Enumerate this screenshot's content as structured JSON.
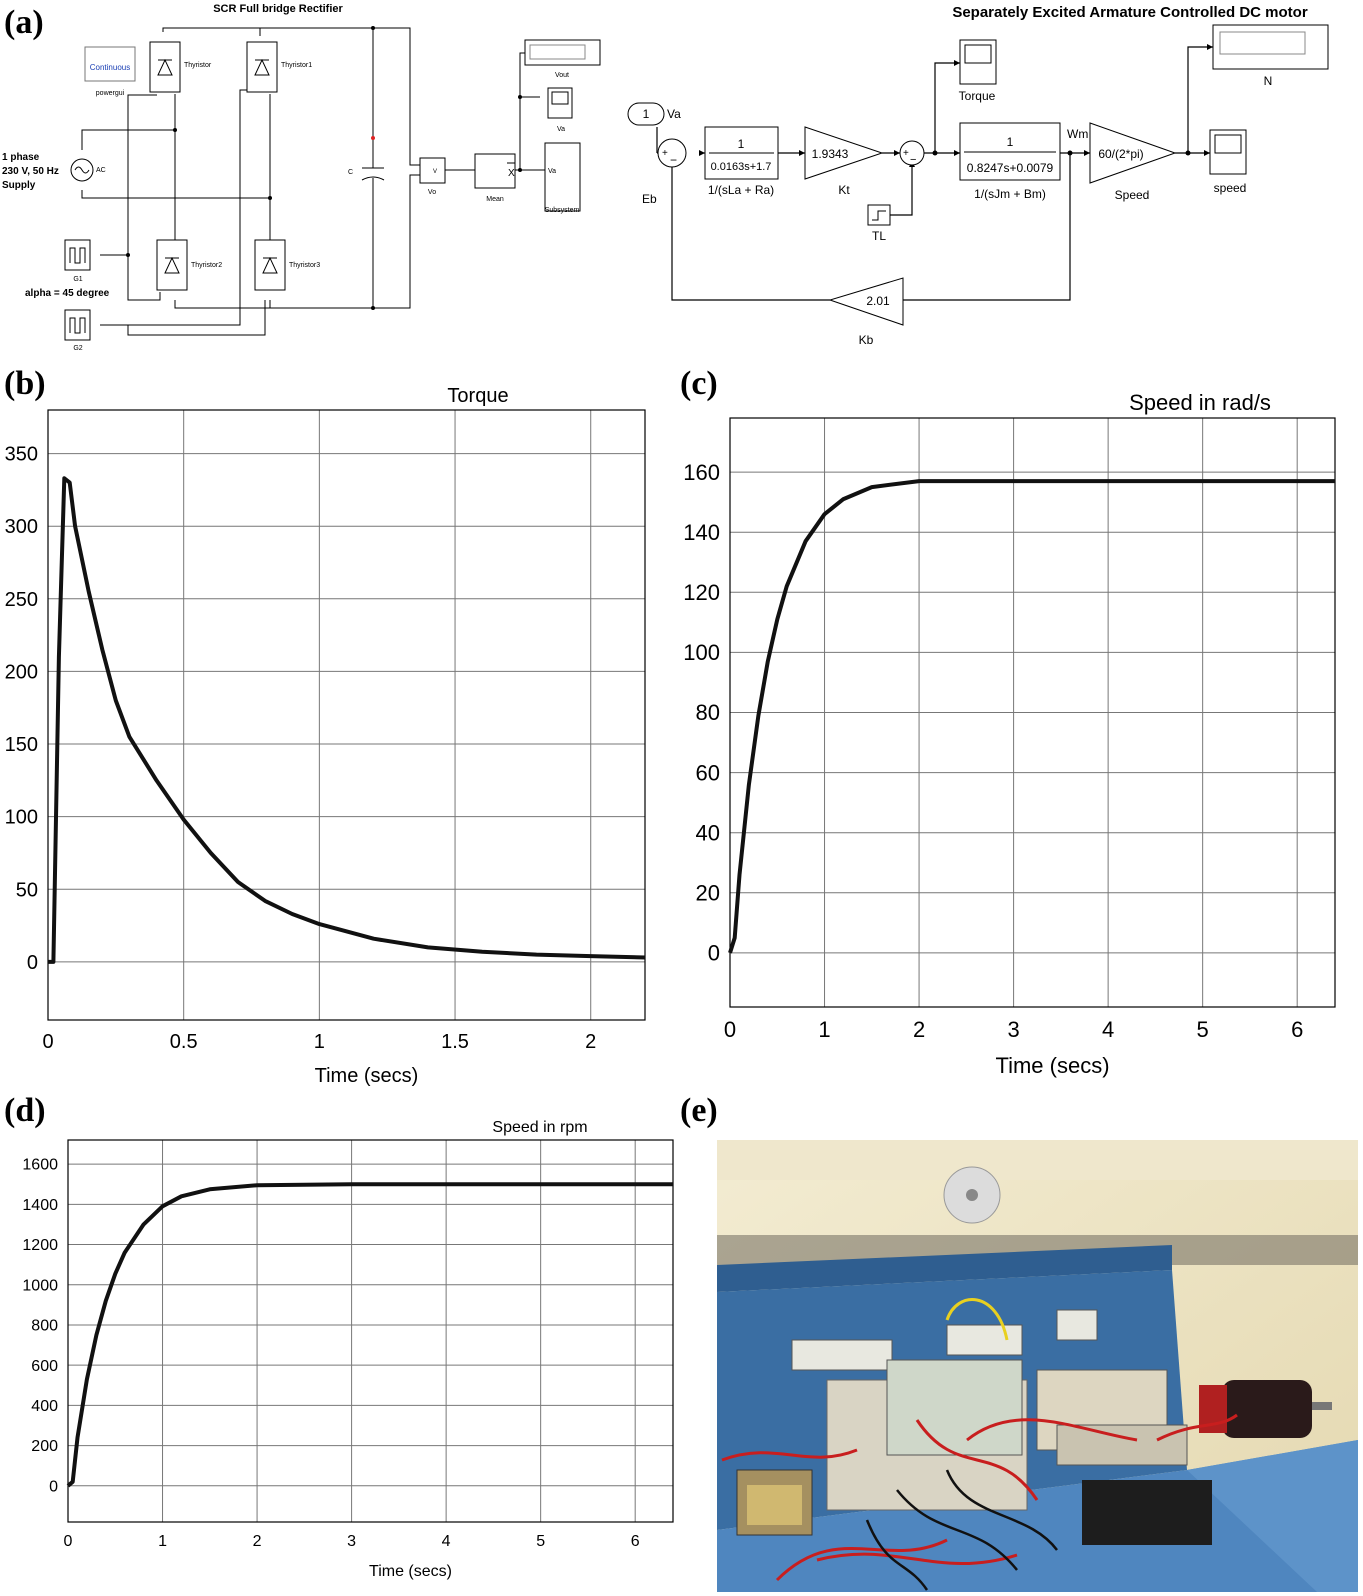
{
  "panels": {
    "a": "(a)",
    "b": "(b)",
    "c": "(c)",
    "d": "(d)",
    "e": "(e)"
  },
  "rectifier": {
    "title": "SCR Full bridge Rectifier",
    "powergui": {
      "label": "Continuous",
      "name": "powergui"
    },
    "supply": [
      "1 phase",
      "230 V, 50 Hz",
      "Supply"
    ],
    "ac": "AC",
    "thyristors": [
      "Thyristor",
      "Thyristor1",
      "Thyristor2",
      "Thyristor3"
    ],
    "cap": "C",
    "vo": "Vo",
    "vo_port": "V",
    "mean": "Mean",
    "mean_symbol": "X",
    "vout": "Vout",
    "va_scope": "Va",
    "subsystem": "Subsystem",
    "subsystem_port": "Va",
    "g1": "G1",
    "g2": "G2",
    "alpha": "alpha = 45 degree"
  },
  "motor": {
    "title": "Separately Excited Armature Controlled DC motor",
    "va_const": "1",
    "va": "Va",
    "eb": "Eb",
    "tf1": {
      "num": "1",
      "den": "0.0163s+1.7",
      "label": "1/(sLa + Ra)"
    },
    "kt": {
      "value": "1.9343",
      "label": "Kt"
    },
    "tf2": {
      "num": "1",
      "den": "0.8247s+0.0079",
      "label": "1/(sJm + Bm)"
    },
    "wm": "Wm",
    "speed": {
      "value": "60/(2*pi)",
      "label": "Speed"
    },
    "torque": "Torque",
    "n": "N",
    "speed_scope": "speed",
    "tl": "TL",
    "kb": {
      "value": "2.01",
      "label": "Kb"
    }
  },
  "chart_data": [
    {
      "type": "line",
      "title": "Torque",
      "xlabel": "Time (secs)",
      "ylabel": "",
      "xlim": [
        0,
        2.2
      ],
      "ylim": [
        -40,
        380
      ],
      "xticks": [
        "0",
        "0.5",
        "1",
        "1.5",
        "2"
      ],
      "yticks": [
        "0",
        "50",
        "100",
        "150",
        "200",
        "250",
        "300",
        "350"
      ],
      "grid": true,
      "series": [
        {
          "x": [
            0,
            0.02,
            0.04,
            0.06,
            0.08,
            0.1,
            0.15,
            0.2,
            0.25,
            0.3,
            0.4,
            0.5,
            0.6,
            0.7,
            0.8,
            0.9,
            1.0,
            1.2,
            1.4,
            1.6,
            1.8,
            2.0,
            2.2
          ],
          "y": [
            0,
            0,
            210,
            333,
            330,
            300,
            255,
            215,
            180,
            155,
            125,
            98,
            75,
            55,
            42,
            33,
            26,
            16,
            10,
            7,
            5,
            4,
            3
          ]
        }
      ]
    },
    {
      "type": "line",
      "title": "Speed in rad/s",
      "xlabel": "Time (secs)",
      "ylabel": "",
      "xlim": [
        0,
        6.4
      ],
      "ylim": [
        -18,
        178
      ],
      "xticks": [
        "0",
        "1",
        "2",
        "3",
        "4",
        "5",
        "6"
      ],
      "yticks": [
        "0",
        "20",
        "40",
        "60",
        "80",
        "100",
        "120",
        "140",
        "160"
      ],
      "grid": true,
      "series": [
        {
          "x": [
            0,
            0.05,
            0.1,
            0.2,
            0.3,
            0.4,
            0.5,
            0.6,
            0.8,
            1.0,
            1.2,
            1.5,
            2.0,
            3.0,
            4.0,
            5.0,
            6.4
          ],
          "y": [
            0,
            5,
            26,
            56,
            79,
            97,
            111,
            122,
            137,
            146,
            151,
            155,
            157,
            157,
            157,
            157,
            157
          ]
        }
      ]
    },
    {
      "type": "line",
      "title": "Speed in rpm",
      "xlabel": "Time (secs)",
      "ylabel": "",
      "xlim": [
        0,
        6.4
      ],
      "ylim": [
        -180,
        1720
      ],
      "xticks": [
        "0",
        "1",
        "2",
        "3",
        "4",
        "5",
        "6"
      ],
      "yticks": [
        "0",
        "200",
        "400",
        "600",
        "800",
        "1000",
        "1200",
        "1400",
        "1600"
      ],
      "grid": true,
      "series": [
        {
          "x": [
            0,
            0.05,
            0.1,
            0.2,
            0.3,
            0.4,
            0.5,
            0.6,
            0.8,
            1.0,
            1.2,
            1.5,
            2.0,
            3.0,
            4.0,
            5.0,
            6.4
          ],
          "y": [
            0,
            20,
            240,
            530,
            750,
            920,
            1055,
            1160,
            1300,
            1390,
            1440,
            1475,
            1495,
            1500,
            1500,
            1500,
            1500
          ]
        }
      ]
    }
  ]
}
